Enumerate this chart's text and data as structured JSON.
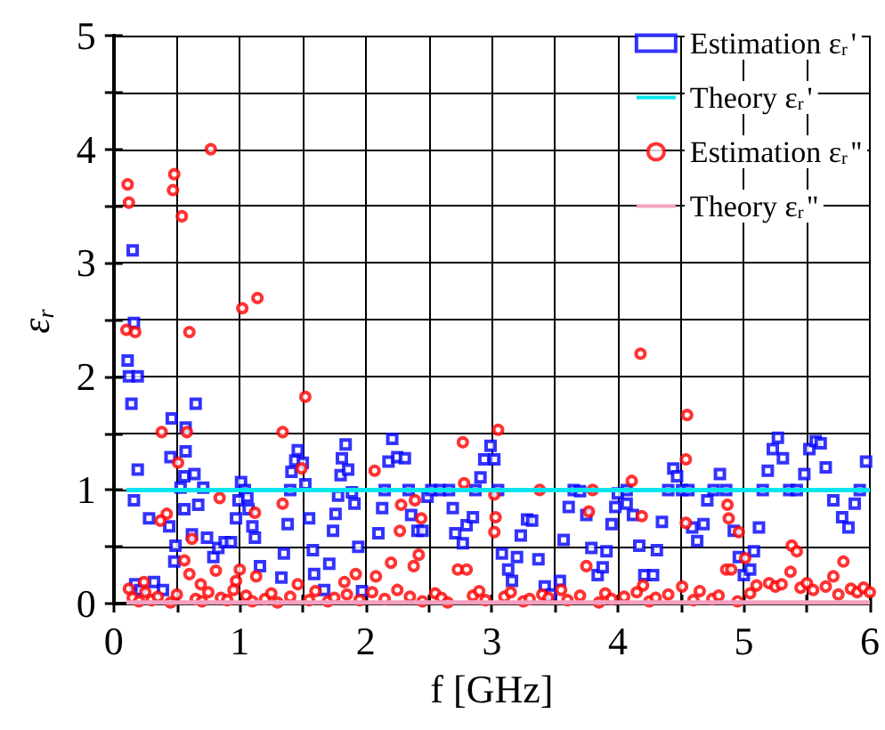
{
  "chart_data": {
    "type": "scatter",
    "xlabel": "f [GHz]",
    "ylabel": "ε$_{r}$",
    "xlim": [
      0,
      6
    ],
    "ylim": [
      0,
      5
    ],
    "xticks": [
      0,
      {
        "value": 0.5,
        "label": null
      },
      1,
      {
        "value": 1.5,
        "label": null
      },
      2,
      {
        "value": 2.5,
        "label": null
      },
      3,
      {
        "value": 3.5,
        "label": null
      },
      4,
      {
        "value": 4.5,
        "label": null
      },
      5,
      {
        "value": 5.5,
        "label": null
      },
      6
    ],
    "yticks": [
      0,
      {
        "value": 0.5,
        "label": null
      },
      1,
      {
        "value": 1.5,
        "label": null
      },
      2,
      {
        "value": 2.5,
        "label": null
      },
      3,
      {
        "value": 3.5,
        "label": null
      },
      4,
      {
        "value": 4.5,
        "label": null
      },
      5
    ],
    "grid": true,
    "legend": "top right",
    "series": [
      {
        "name": "Estimation ε$_{r}$'",
        "marker": "square",
        "color": "#0000ff",
        "x": [
          0.15,
          0.16,
          0.11,
          0.12,
          0.19,
          0.14,
          0.19,
          0.16,
          0.28,
          0.17,
          0.21,
          0.32,
          0.39,
          0.46,
          0.45,
          0.44,
          0.49,
          0.48,
          0.56,
          0.56,
          0.57,
          0.57,
          0.65,
          0.64,
          0.53,
          0.71,
          0.67,
          0.62,
          0.74,
          0.79,
          0.83,
          0.88,
          0.93,
          0.97,
          0.99,
          1.01,
          1.04,
          1.06,
          1.07,
          1.1,
          1.12,
          1.16,
          1.33,
          1.35,
          1.38,
          1.4,
          1.41,
          1.44,
          1.46,
          1.5,
          1.52,
          1.55,
          1.58,
          1.59,
          1.67,
          1.71,
          1.74,
          1.76,
          1.78,
          1.8,
          1.81,
          1.84,
          1.86,
          1.89,
          1.91,
          1.94,
          1.97,
          2.1,
          2.13,
          2.15,
          2.18,
          2.21,
          2.25,
          2.31,
          2.34,
          2.36,
          2.41,
          2.45,
          2.49,
          2.52,
          2.59,
          2.66,
          2.69,
          2.71,
          2.77,
          2.8,
          2.85,
          2.87,
          2.91,
          2.94,
          2.99,
          3.02,
          3.05,
          3.08,
          3.13,
          3.16,
          3.2,
          3.23,
          3.28,
          3.32,
          3.37,
          3.42,
          3.47,
          3.54,
          3.57,
          3.61,
          3.65,
          3.7,
          3.75,
          3.79,
          3.84,
          3.88,
          3.91,
          3.95,
          3.98,
          4.0,
          4.07,
          4.07,
          4.12,
          4.17,
          4.21,
          4.28,
          4.31,
          4.35,
          4.4,
          4.44,
          4.47,
          4.51,
          4.56,
          4.59,
          4.63,
          4.68,
          4.71,
          4.76,
          4.81,
          4.86,
          4.92,
          4.96,
          5.0,
          5.05,
          5.08,
          5.12,
          5.15,
          5.19,
          5.23,
          5.27,
          5.31,
          5.36,
          5.42,
          5.48,
          5.52,
          5.57,
          5.61,
          5.65,
          5.71,
          5.78,
          5.83,
          5.88,
          5.92,
          5.97
        ],
        "values": [
          3.11,
          2.47,
          2.14,
          2.0,
          2.0,
          1.76,
          1.18,
          0.91,
          0.75,
          0.17,
          0.12,
          0.19,
          0.12,
          1.63,
          1.29,
          0.68,
          0.51,
          0.37,
          0.83,
          1.12,
          1.34,
          1.55,
          1.76,
          1.14,
          1.02,
          1.02,
          0.87,
          0.61,
          0.58,
          0.41,
          0.49,
          0.54,
          0.54,
          0.75,
          0.91,
          1.07,
          1.0,
          0.94,
          0.83,
          0.68,
          0.58,
          0.33,
          0.23,
          0.44,
          0.7,
          1.0,
          1.16,
          1.26,
          1.35,
          1.24,
          1.05,
          0.75,
          0.47,
          0.26,
          0.12,
          0.35,
          0.64,
          0.79,
          0.95,
          1.13,
          1.28,
          1.4,
          1.18,
          0.98,
          0.88,
          0.5,
          0.11,
          0.62,
          0.84,
          1.0,
          1.25,
          1.45,
          1.29,
          1.28,
          1.0,
          0.78,
          0.64,
          0.64,
          0.94,
          1.0,
          1.0,
          1.0,
          0.84,
          0.62,
          0.53,
          0.69,
          0.76,
          1.0,
          1.11,
          1.27,
          1.39,
          1.27,
          1.0,
          0.44,
          0.3,
          0.2,
          0.41,
          0.6,
          0.74,
          0.73,
          0.39,
          0.15,
          0.08,
          0.2,
          0.56,
          0.85,
          1.0,
          0.99,
          0.78,
          0.49,
          0.25,
          0.32,
          0.46,
          0.7,
          0.85,
          0.97,
          1.0,
          0.88,
          0.78,
          0.51,
          0.25,
          0.25,
          0.47,
          0.72,
          1.0,
          1.19,
          1.12,
          1.0,
          1.0,
          0.67,
          0.55,
          0.7,
          0.91,
          1.0,
          1.14,
          1.0,
          0.64,
          0.41,
          0.25,
          0.3,
          0.46,
          0.67,
          1.0,
          1.17,
          1.36,
          1.46,
          1.28,
          1.0,
          1.0,
          1.14,
          1.36,
          1.43,
          1.41,
          1.2,
          0.91,
          0.76,
          0.67,
          0.88,
          1.0,
          1.25
        ]
      },
      {
        "name": "Theory ε$_{r}$'",
        "type": "line",
        "marker": "none",
        "color": "#00e5ee",
        "x": [
          0.1,
          6
        ],
        "values": [
          1,
          1
        ]
      },
      {
        "name": "Estimation ε$_{r}$''",
        "marker": "circle",
        "color": "#ff0000",
        "x": [
          0.77,
          0.48,
          0.47,
          0.11,
          0.12,
          0.54,
          1.02,
          1.14,
          0.1,
          0.17,
          0.6,
          0.38,
          0.58,
          0.51,
          0.84,
          1.52,
          1.34,
          1.49,
          1.34,
          1.12,
          0.56,
          0.42,
          0.37,
          0.62,
          0.81,
          0.6,
          0.12,
          0.24,
          0.69,
          1.0,
          0.97,
          1.13,
          1.46,
          1.83,
          1.92,
          2.07,
          2.08,
          2.2,
          2.28,
          2.27,
          2.39,
          2.42,
          2.38,
          2.44,
          2.77,
          2.78,
          2.73,
          2.8,
          3.05,
          3.02,
          3.03,
          3.02,
          3.38,
          3.75,
          3.8,
          3.77,
          4.18,
          4.55,
          4.54,
          4.54,
          4.87,
          4.88,
          4.86,
          4.9,
          4.96,
          5.01,
          4.19,
          4.2,
          4.11,
          5.38,
          5.42,
          5.37,
          5.79,
          5.71,
          4.51,
          0.15,
          0.2,
          0.25,
          0.3,
          0.35,
          0.45,
          0.5,
          0.65,
          0.7,
          0.75,
          0.85,
          0.9,
          0.95,
          1.05,
          1.1,
          1.2,
          1.25,
          1.3,
          1.4,
          1.55,
          1.6,
          1.7,
          1.75,
          1.85,
          1.95,
          2.05,
          2.15,
          2.25,
          2.35,
          2.45,
          2.55,
          2.6,
          2.65,
          2.85,
          2.9,
          2.95,
          3.1,
          3.15,
          3.25,
          3.3,
          3.4,
          3.45,
          3.55,
          3.6,
          3.7,
          3.85,
          3.9,
          3.95,
          4.05,
          4.15,
          4.25,
          4.3,
          4.4,
          4.6,
          4.65,
          4.75,
          4.8,
          4.95,
          5.05,
          5.1,
          5.2,
          5.25,
          5.3,
          5.45,
          5.5,
          5.55,
          5.65,
          5.75,
          5.85,
          5.9,
          5.95,
          6.0
        ],
        "values": [
          4.0,
          3.78,
          3.64,
          3.69,
          3.53,
          3.41,
          2.6,
          2.69,
          2.41,
          2.39,
          2.39,
          1.51,
          1.51,
          1.24,
          0.93,
          1.82,
          1.51,
          1.19,
          0.88,
          0.8,
          0.38,
          0.79,
          0.73,
          0.57,
          0.29,
          0.26,
          0.13,
          0.19,
          0.17,
          0.3,
          0.2,
          0.24,
          0.17,
          0.19,
          0.26,
          1.17,
          0.24,
          0.36,
          0.87,
          0.64,
          0.91,
          0.43,
          0.33,
          0.75,
          1.42,
          1.06,
          0.3,
          0.3,
          1.53,
          0.96,
          0.76,
          0.63,
          1.0,
          0.33,
          1.0,
          0.81,
          2.2,
          1.66,
          1.27,
          0.71,
          0.87,
          0.75,
          0.3,
          0.3,
          0.63,
          0.4,
          0.77,
          0.16,
          1.08,
          0.51,
          0.46,
          0.28,
          0.37,
          0.24,
          0.15,
          0.05,
          0.02,
          0.1,
          0.03,
          0.06,
          0.01,
          0.08,
          0.04,
          0.02,
          0.1,
          0.05,
          0.03,
          0.12,
          0.07,
          0.02,
          0.04,
          0.09,
          0.01,
          0.06,
          0.03,
          0.11,
          0.02,
          0.05,
          0.08,
          0.03,
          0.1,
          0.04,
          0.12,
          0.06,
          0.02,
          0.09,
          0.05,
          0.01,
          0.07,
          0.11,
          0.03,
          0.06,
          0.1,
          0.02,
          0.04,
          0.08,
          0.05,
          0.12,
          0.03,
          0.07,
          0.01,
          0.09,
          0.04,
          0.06,
          0.1,
          0.02,
          0.05,
          0.08,
          0.03,
          0.11,
          0.04,
          0.07,
          0.02,
          0.09,
          0.16,
          0.18,
          0.15,
          0.17,
          0.14,
          0.18,
          0.12,
          0.15,
          0.08,
          0.13,
          0.1,
          0.14,
          0.1
        ]
      },
      {
        "name": "Theory ε$_{r}$''",
        "type": "line",
        "marker": "none",
        "color": "#f4a0c0",
        "x": [
          0.1,
          6
        ],
        "values": [
          0.01,
          0.01
        ]
      }
    ]
  }
}
